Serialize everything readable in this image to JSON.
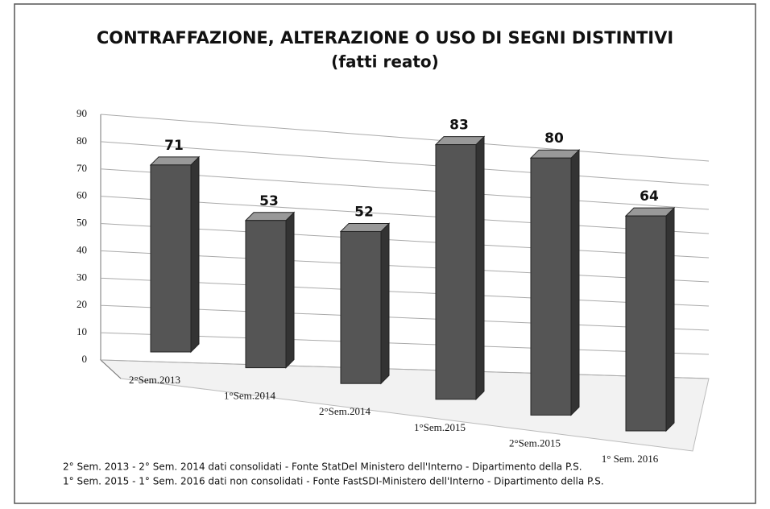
{
  "chart_data": {
    "type": "bar",
    "title": "CONTRAFFAZIONE, ALTERAZIONE O USO DI SEGNI DISTINTIVI",
    "subtitle": "(fatti reato)",
    "categories": [
      "2°Sem.2013",
      "1°Sem.2014",
      "2°Sem.2014",
      "1°Sem.2015",
      "2°Sem.2015",
      "1° Sem. 2016"
    ],
    "values": [
      71,
      53,
      52,
      83,
      80,
      64
    ],
    "color": "#555555",
    "ylim": [
      0,
      90
    ],
    "yticks": [
      0,
      10,
      20,
      30,
      40,
      50,
      60,
      70,
      80,
      90
    ],
    "grid": true,
    "notes": [
      "2° Sem. 2013 - 2° Sem. 2014 dati consolidati - Fonte StatDel Ministero dell'Interno - Dipartimento della P.S.",
      "1° Sem. 2015 - 1° Sem. 2016 dati non consolidati - Fonte FastSDI-Ministero dell'Interno - Dipartimento della P.S."
    ]
  }
}
